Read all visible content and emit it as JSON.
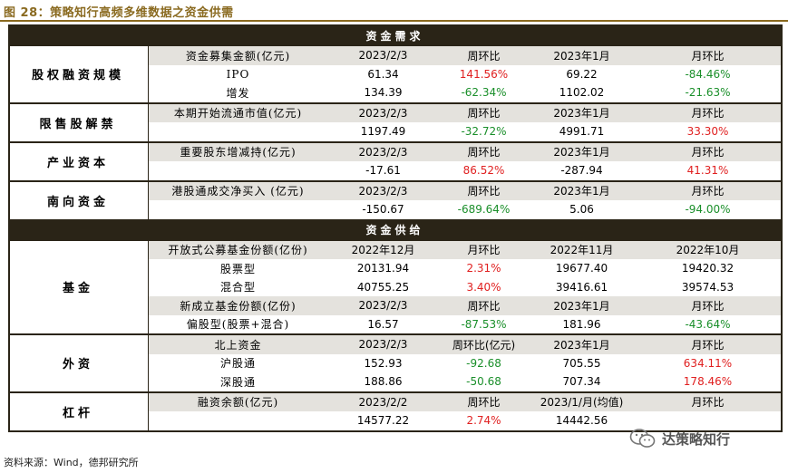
{
  "title": "图 28：策略知行高频多维数据之资金供需",
  "demand_header": "资金需求",
  "supply_header": "资金供给",
  "sections": [
    {
      "category": "股权融资规模",
      "rows": [
        {
          "header": true,
          "cols": [
            "资金募集金额(亿元)",
            "2023/2/3",
            "周环比",
            "2023年1月",
            "月环比"
          ]
        },
        {
          "cols": [
            "IPO",
            "61.34",
            "141.56%",
            "69.22",
            "-84.46%"
          ],
          "signs": [
            "",
            "",
            "pos",
            "",
            "neg"
          ]
        },
        {
          "cols": [
            "增发",
            "134.39",
            "-62.34%",
            "1102.02",
            "-21.63%"
          ],
          "signs": [
            "",
            "",
            "neg",
            "",
            "neg"
          ]
        }
      ]
    },
    {
      "category": "限售股解禁",
      "rows": [
        {
          "header": true,
          "cols": [
            "本期开始流通市值(亿元)",
            "2023/2/3",
            "周环比",
            "2023年1月",
            "月环比"
          ]
        },
        {
          "cols": [
            "",
            "1197.49",
            "-32.72%",
            "4991.71",
            "33.30%"
          ],
          "signs": [
            "",
            "",
            "neg",
            "",
            "pos"
          ]
        }
      ]
    },
    {
      "category": "产业资本",
      "rows": [
        {
          "header": true,
          "cols": [
            "重要股东增减持(亿元)",
            "2023/2/3",
            "周环比",
            "2023年1月",
            "月环比"
          ]
        },
        {
          "cols": [
            "",
            "-17.61",
            "86.52%",
            "-287.94",
            "41.31%"
          ],
          "signs": [
            "",
            "",
            "pos",
            "",
            "pos"
          ]
        }
      ]
    },
    {
      "category": "南向资金",
      "rows": [
        {
          "header": true,
          "cols": [
            "港股通成交净买入 (亿元)",
            "2023/2/3",
            "周环比",
            "2023年1月",
            "月环比"
          ]
        },
        {
          "cols": [
            "",
            "-150.67",
            "-689.64%",
            "5.06",
            "-94.00%"
          ],
          "signs": [
            "",
            "",
            "neg",
            "",
            "neg"
          ]
        }
      ]
    },
    {
      "category": "基金",
      "rows": [
        {
          "header": true,
          "cols": [
            "开放式公募基金份额(亿份)",
            "2022年12月",
            "月环比",
            "2022年11月",
            "2022年10月"
          ]
        },
        {
          "cols": [
            "股票型",
            "20131.94",
            "2.31%",
            "19677.40",
            "19420.32"
          ],
          "signs": [
            "",
            "",
            "pos",
            "",
            ""
          ]
        },
        {
          "cols": [
            "混合型",
            "40755.25",
            "3.40%",
            "39416.61",
            "39574.53"
          ],
          "signs": [
            "",
            "",
            "pos",
            "",
            ""
          ]
        },
        {
          "header": true,
          "cols": [
            "新成立基金份额(亿份)",
            "2023/2/3",
            "周环比",
            "2023年1月",
            "月环比"
          ]
        },
        {
          "cols": [
            "偏股型(股票+混合)",
            "16.57",
            "-87.53%",
            "181.96",
            "-43.64%"
          ],
          "signs": [
            "",
            "",
            "neg",
            "",
            "neg"
          ]
        }
      ]
    },
    {
      "category": "外资",
      "rows": [
        {
          "header": true,
          "cols": [
            "北上资金",
            "2023/2/3",
            "周环比(亿元)",
            "2023年1月",
            "月环比"
          ]
        },
        {
          "cols": [
            "沪股通",
            "152.93",
            "-92.68",
            "705.55",
            "634.11%"
          ],
          "signs": [
            "",
            "",
            "neg",
            "",
            "pos"
          ]
        },
        {
          "cols": [
            "深股通",
            "188.86",
            "-50.68",
            "707.34",
            "178.46%"
          ],
          "signs": [
            "",
            "",
            "neg",
            "",
            "pos"
          ]
        }
      ]
    },
    {
      "category": "杠杆",
      "rows": [
        {
          "header": true,
          "cols": [
            "融资余额(亿元)",
            "2023/2/2",
            "周环比",
            "2023/1/月(均值)",
            "月环比"
          ]
        },
        {
          "cols": [
            "",
            "14577.22",
            "2.74%",
            "14442.56",
            ""
          ],
          "signs": [
            "",
            "",
            "pos",
            "",
            ""
          ]
        }
      ]
    }
  ],
  "source": "资料来源：Wind，德邦研究所",
  "watermark": "达策略知行",
  "colors": {
    "header_band": "#2a2417",
    "title": "#8a6a20",
    "negative": "#1a8f2a",
    "positive": "#e02020",
    "subheader_bg": "#e4e2dd"
  },
  "icons": {
    "watermark": "wechat-icon"
  }
}
